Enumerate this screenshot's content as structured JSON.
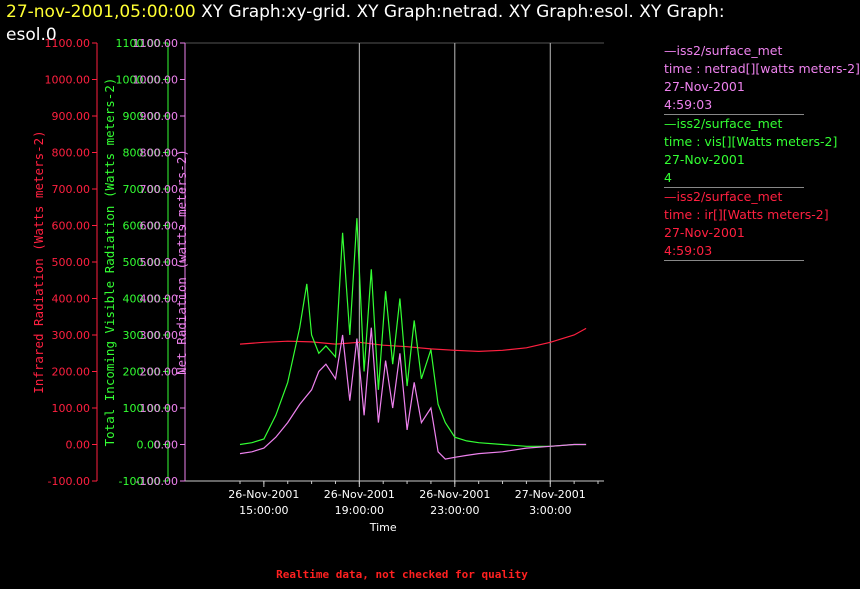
{
  "header": {
    "timestamp": "27-nov-2001,05:00:00",
    "title_rest": " XY Graph:xy-grid.  XY Graph:netrad.  XY Graph:esol.  XY Graph:",
    "title_line2": "esol.0"
  },
  "footer": "Realtime data, not checked for quality",
  "legend": [
    {
      "line1": "—iss2/surface_met",
      "line2": "time : netrad[][watts meters-2]",
      "line3": "27-Nov-2001",
      "line4": "4:59:03",
      "color": "#ee82ee"
    },
    {
      "line1": "—iss2/surface_met",
      "line2": "time : vis[][Watts meters-2]",
      "line3": "27-Nov-2001",
      "line4": "4",
      "color": "#33ff33"
    },
    {
      "line1": "—iss2/surface_met",
      "line2": "time : ir[][Watts meters-2]",
      "line3": "27-Nov-2001",
      "line4": "4:59:03",
      "color": "#ff2040"
    }
  ],
  "chart_data": {
    "type": "line",
    "xlabel": "Time",
    "x_ticks": [
      {
        "date": "26-Nov-2001",
        "time": "15:00:00"
      },
      {
        "date": "26-Nov-2001",
        "time": "19:00:00"
      },
      {
        "date": "26-Nov-2001",
        "time": "23:00:00"
      },
      {
        "date": "27-Nov-2001",
        "time": "3:00:00"
      }
    ],
    "x_range": [
      "26-Nov-2001 14:00",
      "27-Nov-2001 05:00"
    ],
    "vertical_gridlines_at": [
      "26-Nov-2001 19:00:00",
      "26-Nov-2001 23:00:00",
      "27-Nov-2001 3:00:00"
    ],
    "y_ticks": [
      "-100.00",
      "0.00",
      "100.00",
      "200.00",
      "300.00",
      "400.00",
      "500.00",
      "600.00",
      "700.00",
      "800.00",
      "900.00",
      "1000.00",
      "1100.00"
    ],
    "y_axes": [
      {
        "label": "Infrared Radiation (Watts meters-2)",
        "ylim": [
          -100,
          1100
        ],
        "color": "#ff2040"
      },
      {
        "label": "Total Incoming Visible Radiation (Watts meters-2)",
        "ylim": [
          -100,
          1100
        ],
        "color": "#33ff33"
      },
      {
        "label": "Net Radiation (watts meters-2)",
        "ylim": [
          -100,
          1100
        ],
        "color": "#ee82ee"
      }
    ],
    "grid": "vertical lines at labeled times, horizontal line at 1100",
    "series": [
      {
        "name": "ir",
        "color": "#ff2040",
        "x_hours_after_26nov_1400": [
          0,
          1,
          2,
          3,
          4,
          5,
          6,
          7,
          8,
          9,
          10,
          11,
          12,
          13,
          14,
          14.5
        ],
        "values": [
          275,
          280,
          283,
          281,
          275,
          280,
          272,
          268,
          262,
          258,
          255,
          258,
          265,
          280,
          300,
          318
        ]
      },
      {
        "name": "vis",
        "color": "#33ff33",
        "x_hours_after_26nov_1400": [
          0,
          0.5,
          1,
          1.5,
          2,
          2.5,
          2.8,
          3,
          3.3,
          3.6,
          4,
          4.3,
          4.6,
          4.9,
          5.2,
          5.5,
          5.8,
          6.1,
          6.4,
          6.7,
          7,
          7.3,
          7.6,
          8,
          8.3,
          8.6,
          9,
          9.5,
          10,
          11,
          12,
          13,
          14,
          14.5
        ],
        "values": [
          0,
          5,
          15,
          80,
          170,
          320,
          440,
          300,
          250,
          270,
          240,
          580,
          300,
          620,
          200,
          480,
          150,
          420,
          220,
          400,
          160,
          340,
          180,
          260,
          110,
          60,
          20,
          10,
          5,
          0,
          -5,
          -5,
          0,
          0
        ]
      },
      {
        "name": "netrad",
        "color": "#ee82ee",
        "x_hours_after_26nov_1400": [
          0,
          0.5,
          1,
          1.5,
          2,
          2.5,
          3,
          3.3,
          3.6,
          4,
          4.3,
          4.6,
          4.9,
          5.2,
          5.5,
          5.8,
          6.1,
          6.4,
          6.7,
          7,
          7.3,
          7.6,
          8,
          8.3,
          8.6,
          9,
          9.5,
          10,
          11,
          12,
          13,
          14,
          14.5
        ],
        "values": [
          -25,
          -20,
          -10,
          20,
          60,
          110,
          150,
          200,
          220,
          180,
          300,
          120,
          290,
          80,
          320,
          60,
          230,
          100,
          250,
          40,
          170,
          60,
          100,
          -20,
          -40,
          -35,
          -30,
          -25,
          -20,
          -10,
          -5,
          0,
          0
        ]
      }
    ]
  }
}
